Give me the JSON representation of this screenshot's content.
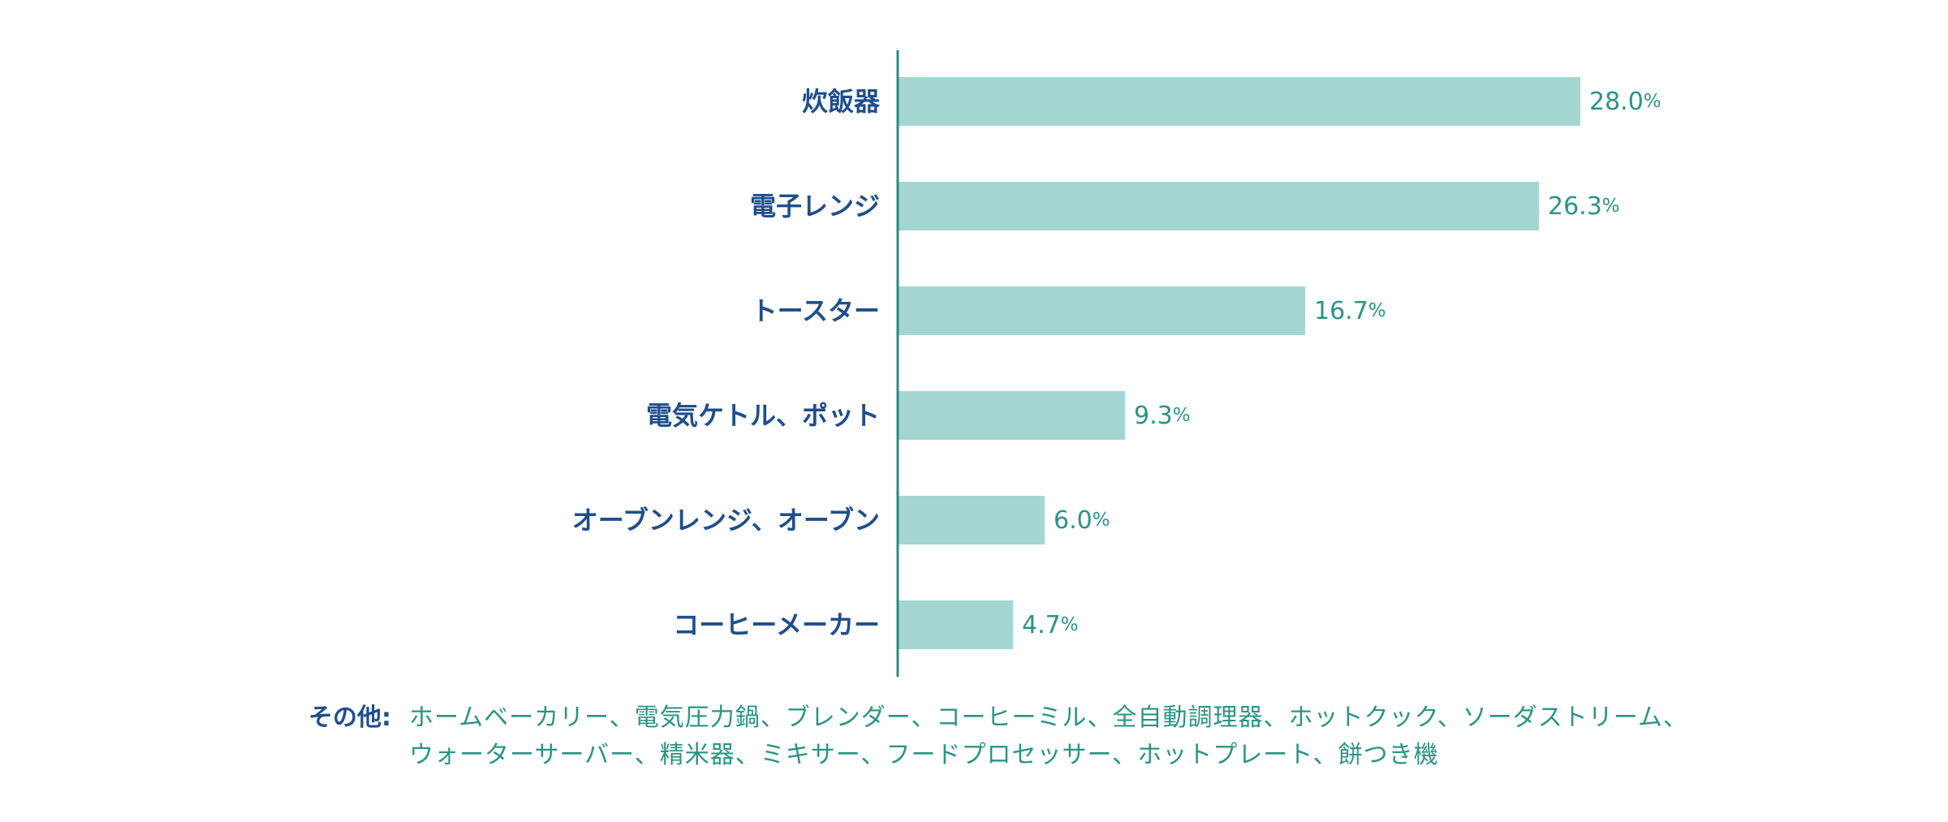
{
  "chart_data": {
    "type": "bar",
    "orientation": "horizontal",
    "categories": [
      "炊飯器",
      "電子レンジ",
      "トースター",
      "電気ケトル、ポット",
      "オーブンレンジ、オーブン",
      "コーヒーメーカー"
    ],
    "values": [
      28.0,
      26.3,
      16.7,
      9.3,
      6.0,
      4.7
    ],
    "value_labels": [
      "28.0",
      "26.3",
      "16.7",
      "9.3",
      "6.0",
      "4.7"
    ],
    "unit": "%",
    "xlim": [
      0,
      50
    ],
    "grid": false,
    "colors": {
      "bar": "#a3d6d1",
      "axis": "#2a8a80",
      "category_text": "#1f4e8c",
      "value_text": "#2a9485"
    }
  },
  "others": {
    "label": "その他:",
    "lines": [
      "ホームベーカリー、電気圧力鍋、ブレンダー、コーヒーミル、全自動調理器、ホットクック、ソーダストリーム、",
      "ウォーターサーバー、精米器、ミキサー、フードプロセッサー、ホットプレート、餅つき機"
    ]
  }
}
